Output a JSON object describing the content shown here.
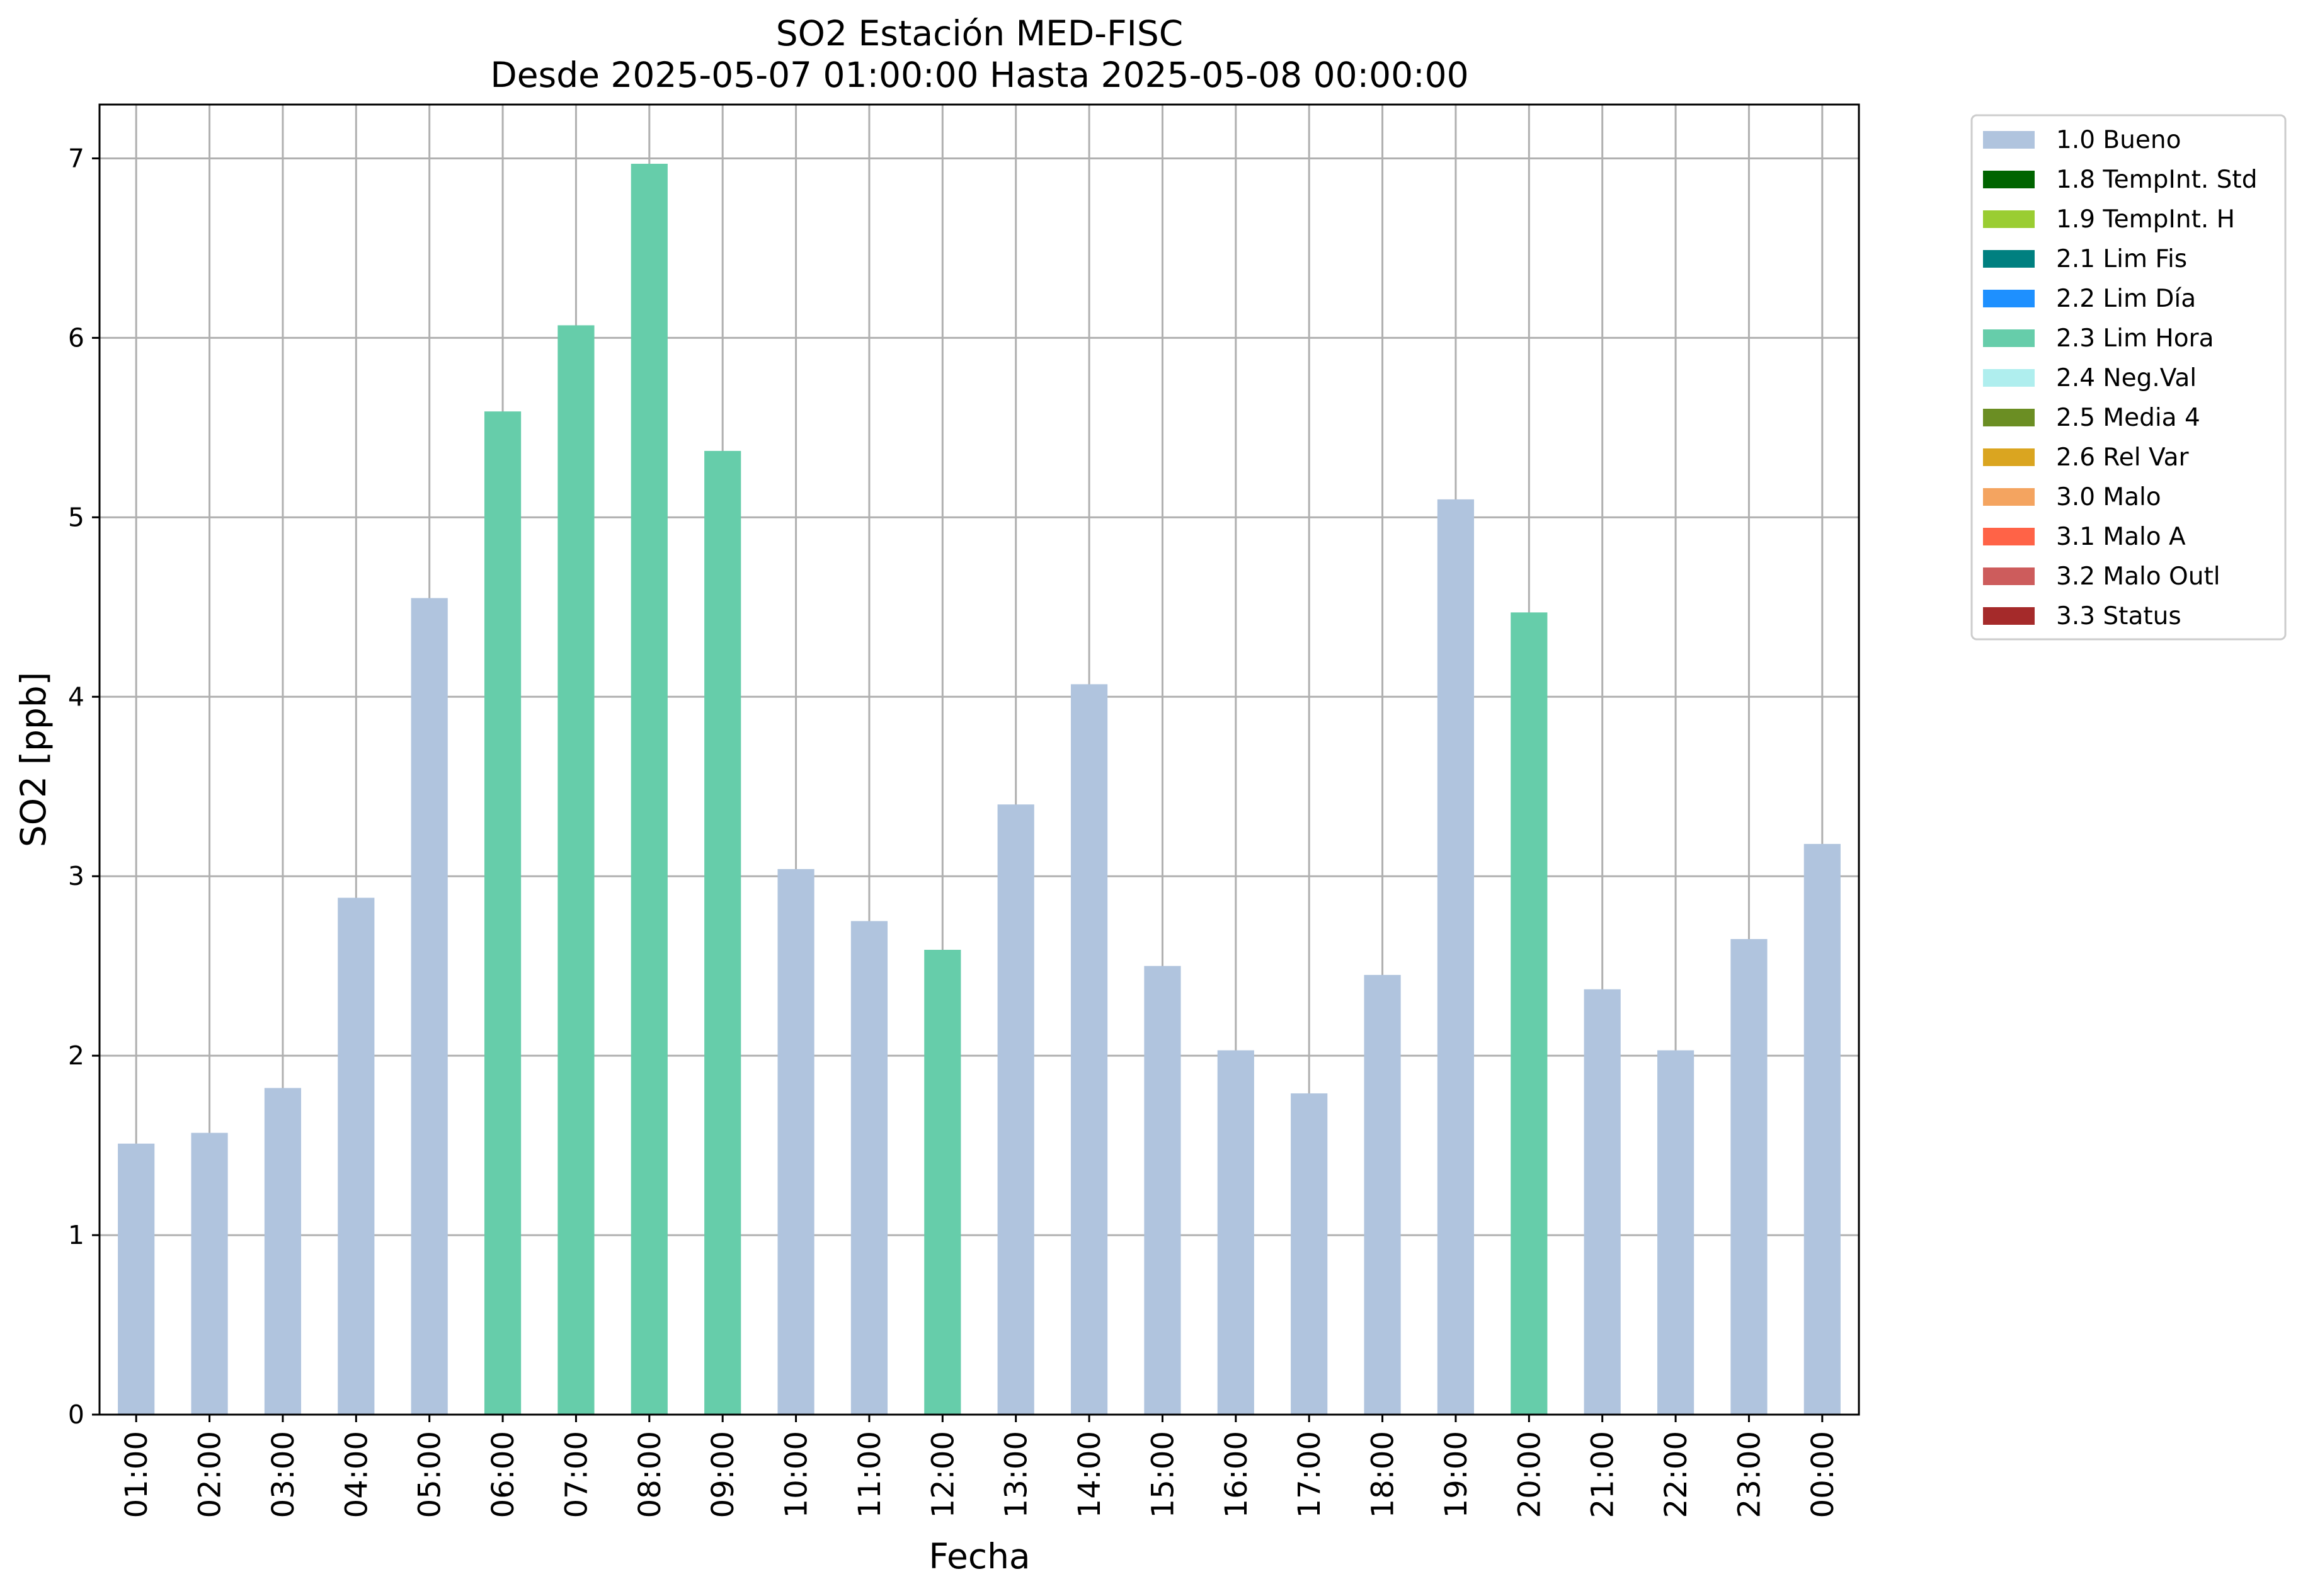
{
  "chart_data": {
    "type": "bar",
    "title": "SO2 Estación MED-FISC",
    "subtitle": "Desde 2025-05-07 01:00:00 Hasta 2025-05-08 00:00:00",
    "xlabel": "Fecha",
    "ylabel": "SO2 [ppb]",
    "ylim": [
      0,
      7.3
    ],
    "yticks": [
      "0",
      "1",
      "2",
      "3",
      "4",
      "5",
      "6",
      "7"
    ],
    "grid": true,
    "legend_position": "outside-top-right",
    "categories": [
      "01:00",
      "02:00",
      "03:00",
      "04:00",
      "05:00",
      "06:00",
      "07:00",
      "08:00",
      "09:00",
      "10:00",
      "11:00",
      "12:00",
      "13:00",
      "14:00",
      "15:00",
      "16:00",
      "17:00",
      "18:00",
      "19:00",
      "20:00",
      "21:00",
      "22:00",
      "23:00",
      "00:00"
    ],
    "values": [
      1.51,
      1.57,
      1.82,
      2.88,
      4.55,
      5.59,
      6.07,
      6.97,
      5.37,
      3.04,
      2.75,
      2.59,
      3.4,
      4.07,
      2.5,
      2.03,
      1.79,
      2.45,
      5.1,
      4.47,
      2.37,
      2.03,
      2.65,
      3.18
    ],
    "flags": [
      "1.0",
      "1.0",
      "1.0",
      "1.0",
      "1.0",
      "2.3",
      "2.3",
      "2.3",
      "2.3",
      "1.0",
      "1.0",
      "2.3",
      "1.0",
      "1.0",
      "1.0",
      "1.0",
      "1.0",
      "1.0",
      "1.0",
      "2.3",
      "1.0",
      "1.0",
      "1.0",
      "1.0"
    ],
    "legend": [
      {
        "code": "1.0",
        "label": "1.0 Bueno",
        "color": "#b0c4de"
      },
      {
        "code": "1.8",
        "label": "1.8 TempInt. Std",
        "color": "#006400"
      },
      {
        "code": "1.9",
        "label": "1.9 TempInt. H",
        "color": "#9acd32"
      },
      {
        "code": "2.1",
        "label": "2.1 Lim Fis",
        "color": "#008080"
      },
      {
        "code": "2.2",
        "label": "2.2 Lim Día",
        "color": "#1e90ff"
      },
      {
        "code": "2.3",
        "label": "2.3 Lim Hora",
        "color": "#66cdaa"
      },
      {
        "code": "2.4",
        "label": "2.4 Neg.Val",
        "color": "#afeeee"
      },
      {
        "code": "2.5",
        "label": "2.5 Media 4",
        "color": "#6b8e23"
      },
      {
        "code": "2.6",
        "label": "2.6 Rel Var",
        "color": "#daa520"
      },
      {
        "code": "3.0",
        "label": "3.0 Malo",
        "color": "#f4a460"
      },
      {
        "code": "3.1",
        "label": "3.1 Malo A",
        "color": "#ff6347"
      },
      {
        "code": "3.2",
        "label": "3.2 Malo Outl",
        "color": "#cd5c5c"
      },
      {
        "code": "3.3",
        "label": "3.3 Status",
        "color": "#a52a2a"
      }
    ]
  }
}
